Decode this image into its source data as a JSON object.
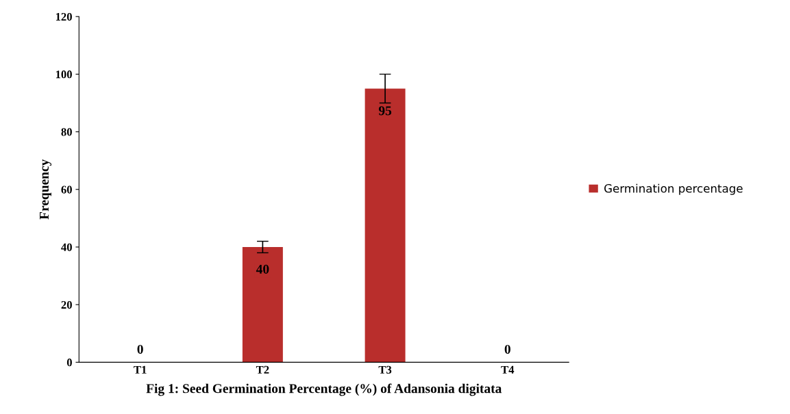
{
  "chart_data": {
    "type": "bar",
    "xlabel": "Fig 1: Seed Germination Percentage (%) of Adansonia digitata",
    "ylabel": "Frequency",
    "categories": [
      "T1",
      "T2",
      "T3",
      "T4"
    ],
    "series": [
      {
        "name": "Germination percentage",
        "color": "#b92e2c",
        "values": [
          0,
          40,
          95,
          0
        ],
        "errors": [
          null,
          2,
          5,
          null
        ]
      }
    ],
    "ylim": [
      0,
      120
    ],
    "yticks": [
      0,
      20,
      40,
      60,
      80,
      100,
      120
    ],
    "grid": false,
    "legend": "right",
    "data_labels": true
  }
}
